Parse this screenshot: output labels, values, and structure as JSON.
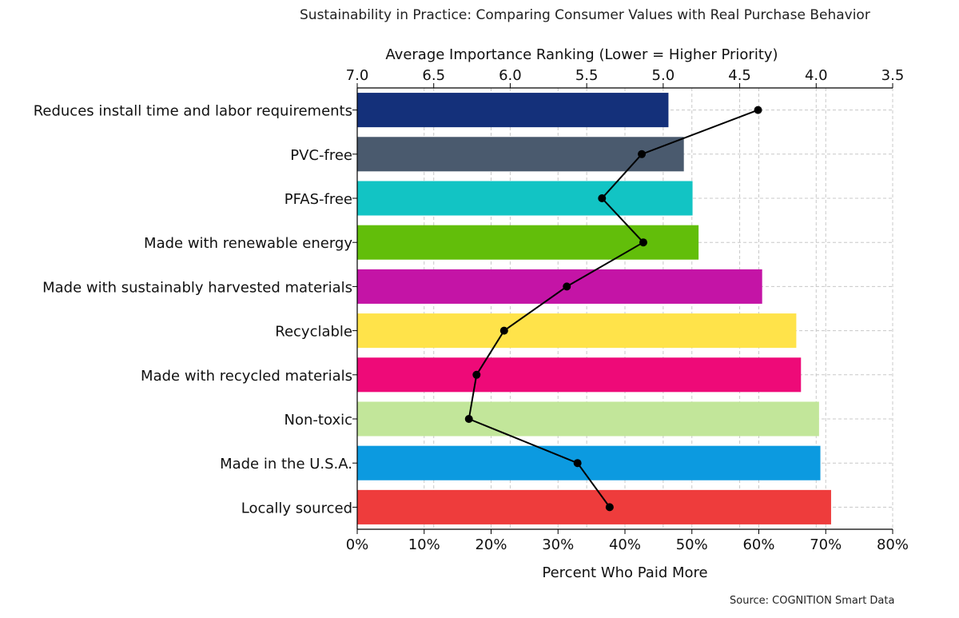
{
  "chart_data": {
    "type": "bar",
    "title": "Sustainability in Practice: Comparing Consumer Values with Real Purchase Behavior",
    "source": "Source: COGNITION Smart Data",
    "categories": [
      "Reduces install time and labor requirements",
      "PVC-free",
      "PFAS-free",
      "Made with renewable energy",
      "Made with sustainably harvested materials",
      "Recyclable",
      "Made with recycled materials",
      "Non-toxic",
      "Made in the U.S.A.",
      "Locally sourced"
    ],
    "colors": [
      "#14307a",
      "#4a5a6e",
      "#12c4c4",
      "#62be0a",
      "#c414a6",
      "#ffe34a",
      "#ee0a78",
      "#c2e69a",
      "#0c9ae0",
      "#ee3c3c"
    ],
    "series": [
      {
        "type": "bar",
        "axis": "bottom",
        "values": [
          46.5,
          48.8,
          50.1,
          51.0,
          60.5,
          65.6,
          66.3,
          69.0,
          69.2,
          70.8
        ]
      },
      {
        "type": "line",
        "axis": "top",
        "color": "#000000",
        "values": [
          4.38,
          5.14,
          5.4,
          5.13,
          5.63,
          6.04,
          6.22,
          6.27,
          5.56,
          5.35
        ]
      }
    ],
    "xlabel": "Percent Who Paid More",
    "xlim": [
      0,
      80
    ],
    "xticks": [
      "0%",
      "10%",
      "20%",
      "30%",
      "40%",
      "50%",
      "60%",
      "70%",
      "80%"
    ],
    "top_axis": {
      "label": "Average Importance Ranking (Lower = Higher Priority)",
      "range": [
        7.0,
        3.5
      ],
      "ticks": [
        "7.0",
        "6.5",
        "6.0",
        "5.5",
        "5.0",
        "4.5",
        "4.0",
        "3.5"
      ]
    },
    "grid": true
  }
}
